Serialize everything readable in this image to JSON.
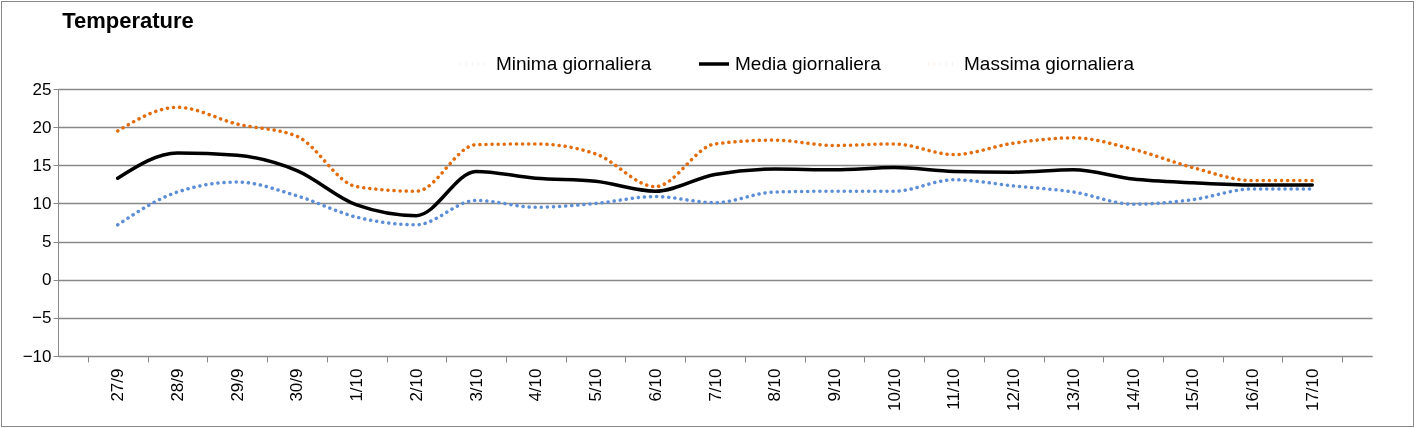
{
  "chart_data": {
    "type": "line",
    "title": "Temperature",
    "categories": [
      "27/9",
      "28/9",
      "29/9",
      "30/9",
      "1/10",
      "2/10",
      "3/10",
      "4/10",
      "5/10",
      "6/10",
      "7/10",
      "8/10",
      "9/10",
      "10/10",
      "11/10",
      "12/10",
      "13/10",
      "14/10",
      "15/10",
      "16/10",
      "17/10"
    ],
    "series": [
      {
        "name": "Minima giornaliera",
        "color": "#5b8ed6",
        "line_style": "dotted",
        "values": [
          7.2,
          11.5,
          12.8,
          11,
          8.2,
          7.2,
          10.4,
          9.5,
          10,
          10.9,
          10.1,
          11.5,
          11.6,
          11.6,
          13.1,
          12.3,
          11.5,
          9.9,
          10.5,
          11.9,
          11.9
        ]
      },
      {
        "name": "Media giornaliera",
        "color": "#000000",
        "line_style": "solid",
        "values": [
          13.3,
          16.6,
          16.3,
          14.3,
          9.8,
          8.4,
          14.2,
          13.3,
          12.9,
          11.6,
          13.8,
          14.5,
          14.4,
          14.7,
          14.2,
          14.1,
          14.4,
          13.2,
          12.7,
          12.4,
          12.4
        ]
      },
      {
        "name": "Massima giornaliera",
        "color": "#e36c0a",
        "line_style": "dotted",
        "values": [
          19.5,
          22.6,
          20.4,
          18.8,
          12.2,
          11.6,
          17.7,
          17.8,
          16.5,
          12.2,
          17.8,
          18.3,
          17.6,
          17.8,
          16.4,
          17.9,
          18.6,
          17.1,
          14.7,
          13,
          13
        ]
      }
    ],
    "ylim": [
      -10,
      25
    ],
    "yticks": [
      -10,
      -5,
      0,
      5,
      10,
      15,
      20,
      25
    ],
    "grid": "y",
    "legend": "top right",
    "marker": "none"
  }
}
